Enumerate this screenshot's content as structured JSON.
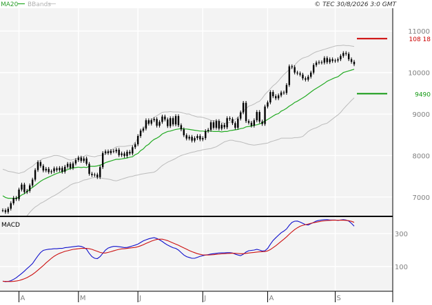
{
  "legend": {
    "ma_label": "MA20",
    "bbands_label": "BBands",
    "ma_line_color": "#2a9d2a",
    "bbands_line_color": "#bbbbbb"
  },
  "copyright": "© TEC 30/8/2026 3:0 GMT",
  "colors": {
    "background": "#ffffff",
    "panel_fill": "#f3f3f3",
    "grid": "#ffffff",
    "axis_text": "#808080",
    "candle": "#000000",
    "ma20": "#22aa22",
    "bbands": "#bbbbbb",
    "macd": "#1010cc",
    "signal": "#cc1010",
    "resistance": "#cc0000",
    "support": "#119911",
    "panel_border": "#000000"
  },
  "chart_data": [
    {
      "type": "candlestick",
      "ylim": [
        6550,
        11550
      ],
      "yticks": [
        7000,
        8000,
        9000,
        10000,
        11000
      ],
      "ytick_labels": [
        "7000",
        "8000",
        "9000",
        "10000",
        "11000"
      ],
      "x_count": 131,
      "month_ticks": [
        {
          "index": 6,
          "label": "A"
        },
        {
          "index": 28,
          "label": "M"
        },
        {
          "index": 50,
          "label": "J"
        },
        {
          "index": 74,
          "label": "J"
        },
        {
          "index": 98,
          "label": "A"
        },
        {
          "index": 123,
          "label": "S"
        }
      ],
      "close": [
        6680,
        6640,
        6720,
        6850,
        6980,
        6950,
        7180,
        7300,
        7120,
        7150,
        7280,
        7420,
        7650,
        7840,
        7750,
        7640,
        7680,
        7600,
        7620,
        7690,
        7650,
        7700,
        7610,
        7730,
        7800,
        7700,
        7810,
        7890,
        7950,
        7870,
        7930,
        7800,
        7560,
        7530,
        7540,
        7480,
        7720,
        8060,
        8100,
        8060,
        8110,
        8100,
        8140,
        8010,
        8050,
        7990,
        8090,
        8050,
        8200,
        8270,
        8470,
        8600,
        8650,
        8850,
        8770,
        8850,
        8880,
        8720,
        8810,
        8940,
        8870,
        8710,
        8900,
        8750,
        8950,
        8730,
        8630,
        8490,
        8410,
        8450,
        8360,
        8420,
        8470,
        8390,
        8420,
        8590,
        8620,
        8800,
        8670,
        8830,
        8650,
        8740,
        8680,
        8900,
        8880,
        8780,
        8670,
        8890,
        9040,
        9270,
        8830,
        8790,
        8720,
        8850,
        9050,
        8820,
        8760,
        9180,
        9280,
        9530,
        9430,
        9380,
        9450,
        9520,
        9510,
        9700,
        10150,
        10130,
        10000,
        9980,
        9950,
        9860,
        9830,
        9900,
        10000,
        10180,
        10240,
        10250,
        10240,
        10350,
        10250,
        10320,
        10280,
        10290,
        10320,
        10400,
        10470,
        10450,
        10320,
        10260,
        10200
      ],
      "ma20": [
        7030,
        6990,
        6970,
        6970,
        6960,
        6970,
        7000,
        7050,
        7080,
        7130,
        7190,
        7230,
        7280,
        7330,
        7380,
        7420,
        7450,
        7480,
        7510,
        7540,
        7570,
        7590,
        7610,
        7640,
        7660,
        7690,
        7700,
        7710,
        7720,
        7710,
        7720,
        7710,
        7740,
        7740,
        7740,
        7750,
        7770,
        7790,
        7830,
        7850,
        7870,
        7890,
        7910,
        7910,
        7920,
        7930,
        7940,
        7960,
        7970,
        8020,
        8050,
        8120,
        8160,
        8230,
        8270,
        8340,
        8390,
        8420,
        8460,
        8520,
        8550,
        8580,
        8590,
        8610,
        8630,
        8640,
        8650,
        8640,
        8640,
        8630,
        8620,
        8610,
        8600,
        8590,
        8590,
        8580,
        8590,
        8590,
        8580,
        8580,
        8580,
        8570,
        8580,
        8580,
        8600,
        8610,
        8620,
        8630,
        8650,
        8660,
        8690,
        8700,
        8710,
        8730,
        8740,
        8760,
        8790,
        8830,
        8870,
        8910,
        8950,
        8990,
        9010,
        9070,
        9100,
        9140,
        9190,
        9230,
        9280,
        9310,
        9350,
        9390,
        9430,
        9480,
        9530,
        9580,
        9620,
        9660,
        9700,
        9740,
        9790,
        9820,
        9850,
        9880,
        9900,
        9950,
        10000,
        10020,
        10040,
        10060,
        10080
      ],
      "bb_upper": [
        7670,
        7650,
        7620,
        7610,
        7600,
        7580,
        7570,
        7590,
        7610,
        7660,
        7700,
        7740,
        7800,
        7850,
        7890,
        7930,
        7940,
        7960,
        7980,
        8000,
        8000,
        7990,
        7970,
        7940,
        7910,
        7890,
        7900,
        7920,
        7940,
        7960,
        7980,
        8010,
        7990,
        7980,
        7970,
        7990,
        8000,
        8010,
        8040,
        8080,
        8120,
        8170,
        8210,
        8220,
        8220,
        8220,
        8230,
        8240,
        8240,
        8320,
        8420,
        8540,
        8640,
        8740,
        8800,
        8860,
        8920,
        8960,
        9000,
        9040,
        9050,
        9050,
        9060,
        9050,
        9050,
        9050,
        9040,
        9020,
        9000,
        9000,
        8970,
        8950,
        8930,
        8930,
        8920,
        8900,
        8880,
        8850,
        8840,
        8840,
        8830,
        8800,
        8780,
        8780,
        8800,
        8830,
        8870,
        8920,
        8990,
        9070,
        9130,
        9190,
        9210,
        9240,
        9280,
        9310,
        9380,
        9470,
        9540,
        9610,
        9680,
        9730,
        9800,
        9880,
        9950,
        10010,
        10070,
        10120,
        10180,
        10250,
        10310,
        10350,
        10370,
        10390,
        10430,
        10470,
        10500,
        10520,
        10540,
        10560,
        10580,
        10600,
        10620,
        10640,
        10650,
        10650,
        10660,
        10650,
        10650,
        10640,
        10630
      ],
      "bb_lower": [
        6490,
        6460,
        6420,
        6380,
        6370,
        6380,
        6400,
        6450,
        6470,
        6550,
        6630,
        6700,
        6760,
        6800,
        6850,
        6880,
        6920,
        6960,
        7000,
        7030,
        7070,
        7110,
        7160,
        7200,
        7240,
        7290,
        7320,
        7340,
        7350,
        7380,
        7410,
        7420,
        7440,
        7460,
        7470,
        7470,
        7460,
        7450,
        7440,
        7430,
        7420,
        7400,
        7390,
        7410,
        7430,
        7450,
        7470,
        7490,
        7500,
        7520,
        7530,
        7550,
        7560,
        7570,
        7580,
        7590,
        7600,
        7640,
        7700,
        7760,
        7800,
        7840,
        7870,
        7900,
        7930,
        7970,
        8000,
        8020,
        8040,
        8060,
        8080,
        8090,
        8110,
        8120,
        8140,
        8150,
        8160,
        8170,
        8190,
        8210,
        8250,
        8290,
        8330,
        8350,
        8370,
        8370,
        8350,
        8340,
        8330,
        8310,
        8290,
        8270,
        8260,
        8250,
        8260,
        8270,
        8280,
        8290,
        8300,
        8330,
        8350,
        8370,
        8390,
        8420,
        8420,
        8420,
        8420,
        8420,
        8430,
        8430,
        8440,
        8460,
        8520,
        8580,
        8620,
        8650,
        8670,
        8700,
        8740,
        8760,
        8780,
        8830,
        8880,
        8930,
        8980,
        9040,
        9120,
        9190,
        9260,
        9330,
        9390
      ],
      "resistance": {
        "value": 10818,
        "label": "108 18"
      },
      "support": {
        "value": 9490,
        "label": "9490"
      }
    },
    {
      "type": "line",
      "title": "MACD",
      "ylim": [
        -50,
        400
      ],
      "yticks": [
        100,
        300
      ],
      "ytick_labels": [
        "100",
        "300"
      ],
      "x_count": 131,
      "series": [
        {
          "key": "macd",
          "values": [
            12,
            8,
            10,
            14,
            22,
            32,
            45,
            58,
            72,
            88,
            102,
            118,
            142,
            165,
            185,
            198,
            202,
            205,
            206,
            208,
            208,
            210,
            210,
            214,
            216,
            218,
            220,
            222,
            224,
            222,
            216,
            205,
            180,
            160,
            150,
            148,
            160,
            180,
            200,
            212,
            218,
            222,
            222,
            220,
            218,
            215,
            216,
            220,
            225,
            230,
            236,
            246,
            256,
            262,
            268,
            272,
            275,
            270,
            262,
            252,
            240,
            230,
            222,
            214,
            210,
            200,
            185,
            170,
            160,
            155,
            150,
            150,
            156,
            162,
            166,
            170,
            172,
            176,
            178,
            180,
            182,
            183,
            183,
            184,
            184,
            182,
            175,
            170,
            166,
            175,
            188,
            196,
            198,
            200,
            204,
            200,
            194,
            196,
            210,
            235,
            258,
            274,
            290,
            305,
            315,
            328,
            350,
            368,
            375,
            376,
            370,
            362,
            354,
            352,
            360,
            368,
            376,
            380,
            382,
            384,
            384,
            382,
            382,
            382,
            380,
            382,
            384,
            382,
            376,
            362,
            345
          ]
        },
        {
          "key": "signal",
          "values": [
            10,
            10,
            9,
            9,
            10,
            12,
            15,
            20,
            26,
            33,
            42,
            52,
            64,
            78,
            92,
            106,
            122,
            136,
            150,
            162,
            172,
            180,
            186,
            192,
            196,
            200,
            204,
            206,
            208,
            210,
            210,
            210,
            208,
            204,
            198,
            192,
            186,
            182,
            182,
            186,
            190,
            195,
            200,
            204,
            207,
            208,
            210,
            212,
            214,
            216,
            220,
            226,
            232,
            240,
            247,
            254,
            260,
            264,
            266,
            266,
            262,
            257,
            250,
            243,
            236,
            229,
            221,
            213,
            205,
            197,
            190,
            184,
            178,
            174,
            171,
            170,
            170,
            171,
            172,
            174,
            175,
            177,
            178,
            179,
            180,
            181,
            180,
            179,
            178,
            178,
            180,
            182,
            184,
            186,
            188,
            189,
            190,
            191,
            195,
            203,
            214,
            226,
            239,
            253,
            266,
            280,
            296,
            311,
            324,
            335,
            344,
            350,
            354,
            358,
            362,
            366,
            369,
            372,
            375,
            377,
            379,
            380,
            381,
            381,
            381,
            381,
            381,
            380,
            378,
            374,
            368
          ]
        }
      ]
    }
  ]
}
